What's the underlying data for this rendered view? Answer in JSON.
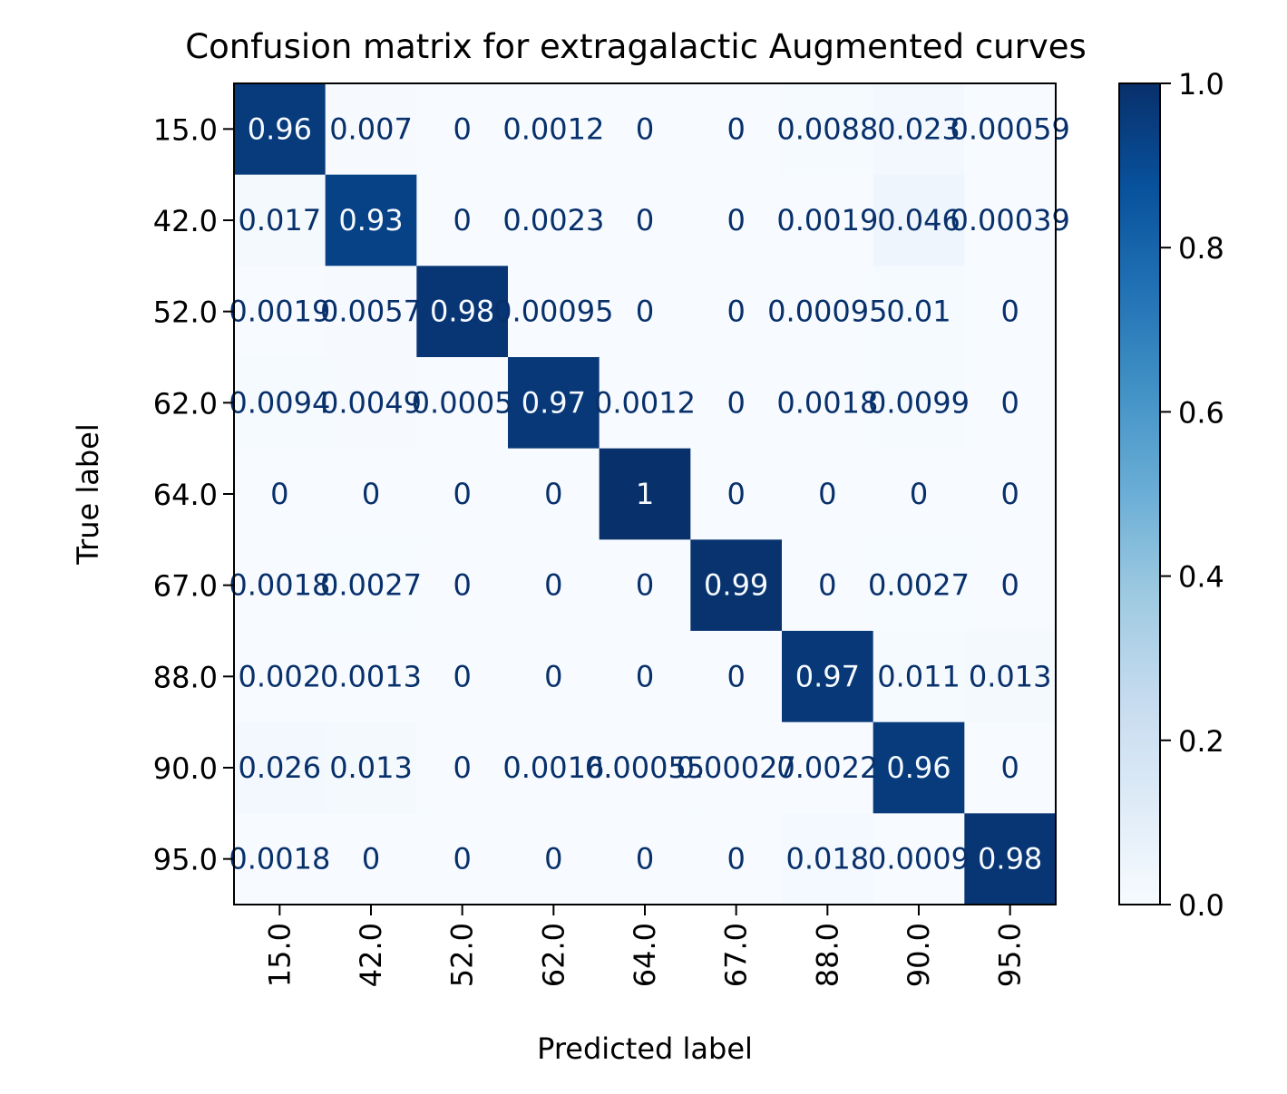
{
  "chart_data": {
    "type": "heatmap",
    "title": "Confusion matrix for extragalactic Augmented curves",
    "xlabel": "Predicted label",
    "ylabel": "True label",
    "x_categories": [
      "15.0",
      "42.0",
      "52.0",
      "62.0",
      "64.0",
      "67.0",
      "88.0",
      "90.0",
      "95.0"
    ],
    "y_categories": [
      "15.0",
      "42.0",
      "52.0",
      "62.0",
      "64.0",
      "67.0",
      "88.0",
      "90.0",
      "95.0"
    ],
    "values": [
      [
        0.96,
        0.007,
        0,
        0.0012,
        0,
        0,
        0.0088,
        0.023,
        0.00059
      ],
      [
        0.017,
        0.93,
        0,
        0.0023,
        0,
        0,
        0.0019,
        0.046,
        0.00039
      ],
      [
        0.0019,
        0.0057,
        0.98,
        0.00095,
        0,
        0,
        0.00095,
        0.01,
        0
      ],
      [
        0.0094,
        0.0049,
        0.0005,
        0.97,
        0.0012,
        0,
        0.0018,
        0.0099,
        0
      ],
      [
        0,
        0,
        0,
        0,
        1,
        0,
        0,
        0,
        0
      ],
      [
        0.0018,
        0.0027,
        0,
        0,
        0,
        0.99,
        0,
        0.0027,
        0
      ],
      [
        0.002,
        0.0013,
        0,
        0,
        0,
        0,
        0.97,
        0.011,
        0.013
      ],
      [
        0.026,
        0.013,
        0,
        0.0016,
        0.00055,
        0.00027,
        0.0022,
        0.96,
        0
      ],
      [
        0.0018,
        0,
        0,
        0,
        0,
        0,
        0.018,
        0.0009,
        0.98
      ]
    ],
    "labels": [
      [
        "0.96",
        "0.007",
        "0",
        "0.0012",
        "0",
        "0",
        "0.0088",
        "0.023",
        "0.00059"
      ],
      [
        "0.017",
        "0.93",
        "0",
        "0.0023",
        "0",
        "0",
        "0.0019",
        "0.046",
        "0.00039"
      ],
      [
        "0.0019",
        "0.0057",
        "0.98",
        "0.00095",
        "0",
        "0",
        "0.00095",
        "0.01",
        "0"
      ],
      [
        "0.0094",
        "0.0049",
        "0.0005",
        "0.97",
        "0.0012",
        "0",
        "0.0018",
        "0.0099",
        "0"
      ],
      [
        "0",
        "0",
        "0",
        "0",
        "1",
        "0",
        "0",
        "0",
        "0"
      ],
      [
        "0.0018",
        "0.0027",
        "0",
        "0",
        "0",
        "0.99",
        "0",
        "0.0027",
        "0"
      ],
      [
        "0.002",
        "0.0013",
        "0",
        "0",
        "0",
        "0",
        "0.97",
        "0.011",
        "0.013"
      ],
      [
        "0.026",
        "0.013",
        "0",
        "0.0016",
        "0.00055",
        "0.00027",
        "0.0022",
        "0.96",
        "0"
      ],
      [
        "0.0018",
        "0",
        "0",
        "0",
        "0",
        "0",
        "0.018",
        "0.0009",
        "0.98"
      ]
    ],
    "colormap": "Blues",
    "colorbar": {
      "range": [
        0.0,
        1.0
      ],
      "ticks": [
        0.0,
        0.2,
        0.4,
        0.6,
        0.8,
        1.0
      ],
      "tick_labels": [
        "0.0",
        "0.2",
        "0.4",
        "0.6",
        "0.8",
        "1.0"
      ]
    },
    "text_color_dark": "#08306b",
    "text_color_light": "#f7fbff"
  }
}
